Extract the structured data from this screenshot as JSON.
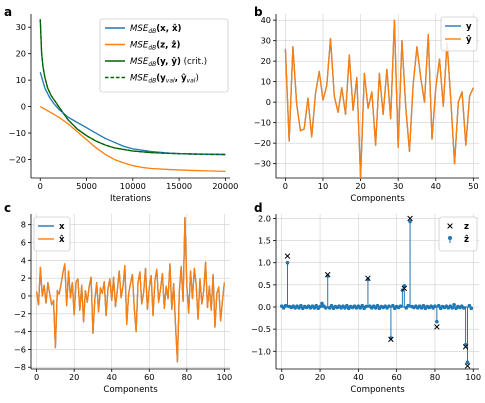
{
  "colors": {
    "blue": "#1f77b4",
    "orange": "#ff7f0e",
    "green": "#006400",
    "legend_border": "#cccccc"
  },
  "chart_data": [
    {
      "id": "a",
      "letter": "a",
      "type": "line",
      "xlabel": "Iterations",
      "ylabel": "",
      "xlim": [
        -1000,
        20500
      ],
      "ylim": [
        -27,
        35
      ],
      "xticks": [
        0,
        5000,
        10000,
        15000,
        20000
      ],
      "yticks": [
        -20,
        -10,
        0,
        10,
        20,
        30
      ],
      "grid": false,
      "legend_position": "top-right",
      "series": [
        {
          "name": "MSE_dB(x, x̂)",
          "legend_main": "MSE",
          "legend_sub": "dB",
          "legend_args": "(x, x̂)",
          "legend_suffix": "",
          "color_key": "blue",
          "style": "solid",
          "x": [
            0,
            500,
            1000,
            1500,
            2000,
            2500,
            3000,
            3500,
            4000,
            5000,
            6000,
            7000,
            8000,
            9000,
            10000,
            12000,
            14000,
            16000,
            18000,
            20000
          ],
          "y": [
            13,
            7,
            3.5,
            1,
            -1,
            -2.5,
            -4,
            -5,
            -6,
            -8,
            -10,
            -12,
            -13.5,
            -15,
            -16,
            -17,
            -17.6,
            -17.9,
            -18.1,
            -18.2
          ]
        },
        {
          "name": "MSE_dB(z, ẑ)",
          "legend_main": "MSE",
          "legend_sub": "dB",
          "legend_args": "(z, ẑ)",
          "legend_suffix": "",
          "color_key": "orange",
          "style": "solid",
          "x": [
            0,
            500,
            1000,
            2000,
            3000,
            4000,
            5000,
            6000,
            7000,
            8000,
            9000,
            10000,
            11000,
            12000,
            14000,
            16000,
            18000,
            20000
          ],
          "y": [
            0,
            -1,
            -2,
            -4,
            -6.5,
            -9.5,
            -12.5,
            -15.5,
            -18,
            -20,
            -21.3,
            -22.3,
            -23,
            -23.4,
            -23.8,
            -24.1,
            -24.3,
            -24.5
          ]
        },
        {
          "name": "MSE_dB(y, ŷ) (crit.)",
          "legend_main": "MSE",
          "legend_sub": "dB",
          "legend_args": "(y, ŷ)",
          "legend_suffix": " (crit.)",
          "color_key": "green",
          "style": "solid",
          "x": [
            0,
            150,
            300,
            500,
            800,
            1200,
            1600,
            2000,
            2500,
            3000,
            4000,
            5000,
            6000,
            7000,
            8000,
            10000,
            12000,
            14000,
            16000,
            18000,
            20000
          ],
          "y": [
            33,
            20,
            15,
            11,
            7,
            4,
            2,
            0,
            -2.5,
            -5,
            -8.5,
            -11,
            -13,
            -14.5,
            -15.6,
            -16.8,
            -17.4,
            -17.7,
            -17.9,
            -18,
            -18.1
          ]
        },
        {
          "name": "MSE_dB(y_val, ŷ_val)",
          "legend_main": "MSE",
          "legend_sub": "dB",
          "legend_args": "(y",
          "legend_args_sub": "val",
          "legend_args2": ", ŷ",
          "legend_args2_sub": "val",
          "legend_suffix": ")",
          "color_key": "green",
          "style": "dashed",
          "x": [
            0,
            150,
            300,
            500,
            800,
            1200,
            1600,
            2000,
            2500,
            3000,
            4000,
            5000,
            6000,
            7000,
            8000,
            10000,
            12000,
            14000,
            16000,
            18000,
            20000
          ],
          "y": [
            33,
            20,
            15,
            11,
            7,
            4,
            2,
            0,
            -2.5,
            -5,
            -8.5,
            -11,
            -13,
            -14.5,
            -15.6,
            -16.8,
            -17.4,
            -17.7,
            -17.9,
            -18,
            -18.1
          ]
        }
      ]
    },
    {
      "id": "b",
      "letter": "b",
      "type": "line",
      "xlabel": "Components",
      "ylabel": "",
      "xlim": [
        -2.5,
        51.5
      ],
      "ylim": [
        -37,
        43
      ],
      "xticks": [
        0,
        10,
        20,
        30,
        40,
        50
      ],
      "yticks": [
        -30,
        -20,
        -10,
        0,
        10,
        20,
        30,
        40
      ],
      "grid": true,
      "legend_position": "top-right",
      "series": [
        {
          "name": "y",
          "label": "y",
          "color_key": "blue",
          "style": "solid",
          "y": [
            26,
            -19,
            27,
            -1,
            -14,
            -13,
            2,
            -17,
            4,
            15,
            1,
            8,
            31,
            3,
            -5,
            7,
            -6,
            23,
            -4,
            12,
            -37,
            14,
            -3,
            5,
            -21,
            14,
            -6,
            16,
            -8,
            40,
            -22,
            30,
            -2,
            -24,
            9,
            27,
            12,
            0,
            33,
            -18,
            7,
            21,
            -2,
            29,
            1,
            -30,
            0,
            5,
            -21,
            3,
            7
          ]
        },
        {
          "name": "ŷ",
          "label": "ŷ",
          "color_key": "orange",
          "style": "solid",
          "y": [
            26,
            -19,
            27,
            -1,
            -14,
            -13,
            2,
            -17,
            4,
            15,
            1,
            8,
            31,
            3,
            -5,
            7,
            -6,
            23,
            -4,
            12,
            -37,
            14,
            -3,
            5,
            -21,
            14,
            -6,
            16,
            -8,
            40,
            -22,
            30,
            -2,
            -24,
            9,
            27,
            12,
            0,
            33,
            -18,
            7,
            21,
            -2,
            29,
            1,
            -30,
            0,
            5,
            -21,
            3,
            7
          ]
        }
      ]
    },
    {
      "id": "c",
      "letter": "c",
      "type": "line",
      "xlabel": "Components",
      "ylabel": "",
      "xlim": [
        -3,
        103
      ],
      "ylim": [
        -8.2,
        9.2
      ],
      "xticks": [
        0,
        20,
        40,
        60,
        80,
        100
      ],
      "yticks": [
        -8,
        -6,
        -4,
        -2,
        0,
        2,
        4,
        6,
        8
      ],
      "grid": true,
      "legend_position": "top-left",
      "series": [
        {
          "name": "x",
          "label": "x",
          "color_key": "blue",
          "style": "solid",
          "y": [
            0.5,
            -1,
            3.2,
            0,
            1.2,
            -0.8,
            1.5,
            0.2,
            -1,
            -0.5,
            -5.8,
            0.6,
            0.2,
            1.3,
            2.6,
            3.6,
            -1.1,
            2.8,
            -0.2,
            1.5,
            -2.1,
            1.6,
            1.9,
            -1.6,
            1.2,
            -2.9,
            0.6,
            -0.7,
            1.1,
            2.1,
            -4.2,
            -0.4,
            1.5,
            -1.8,
            0.9,
            0.3,
            1.6,
            -2.2,
            0.8,
            1.9,
            -0.5,
            2.1,
            -1.2,
            0.7,
            2.8,
            -0.2,
            1.1,
            3.4,
            -3.2,
            0.2,
            1.4,
            2.4,
            -1.3,
            -4,
            1.5,
            2.7,
            -0.9,
            0.4,
            3.1,
            -1.5,
            0.9,
            2.3,
            -2.2,
            1.7,
            3,
            -0.7,
            0.8,
            2.5,
            -1.4,
            1.1,
            -0.3,
            3.6,
            -1.5,
            1.4,
            -3.4,
            -7.4,
            0.5,
            3.3,
            -0.6,
            8.8,
            1.1,
            -1.9,
            2.8,
            -0.3,
            3.1,
            1.2,
            -2.6,
            1.9,
            -0.9,
            0.6,
            3.8,
            -1.3,
            1.1,
            -1.6,
            2.4,
            -3.5,
            0.3,
            1,
            -2.8,
            -0.5,
            1.5
          ]
        },
        {
          "name": "x̂",
          "label": "x̂",
          "color_key": "orange",
          "style": "solid",
          "y": [
            0.5,
            -1,
            3.2,
            0,
            1.2,
            -0.8,
            1.5,
            0.2,
            -1,
            -0.5,
            -5.8,
            0.6,
            0.2,
            1.3,
            2.6,
            3.6,
            -1.1,
            2.8,
            -0.2,
            1.5,
            -2.1,
            1.6,
            1.9,
            -1.6,
            1.2,
            -2.9,
            0.6,
            -0.7,
            1.1,
            2.1,
            -4.2,
            -0.4,
            1.5,
            -1.8,
            0.9,
            0.3,
            1.6,
            -2.2,
            0.8,
            1.9,
            -0.5,
            2.1,
            -1.2,
            0.7,
            2.8,
            -0.2,
            1.1,
            3.4,
            -3.2,
            0.2,
            1.4,
            2.4,
            -1.3,
            -4,
            1.5,
            2.7,
            -0.9,
            0.4,
            3.1,
            -1.5,
            0.9,
            2.3,
            -2.2,
            1.7,
            3,
            -0.7,
            0.8,
            2.5,
            -1.4,
            1.1,
            -0.3,
            3.6,
            -1.5,
            1.4,
            -3.4,
            -7.4,
            0.5,
            3.3,
            -0.6,
            8.8,
            1.1,
            -1.9,
            2.8,
            -0.3,
            3.1,
            1.2,
            -2.6,
            1.9,
            -0.9,
            0.6,
            3.8,
            -1.3,
            1.1,
            -1.6,
            2.4,
            -3.5,
            0.3,
            1,
            -2.8,
            -0.5,
            1.5
          ]
        }
      ]
    },
    {
      "id": "d",
      "letter": "d",
      "type": "stem",
      "xlabel": "Components",
      "ylabel": "",
      "xlim": [
        -3,
        103
      ],
      "ylim": [
        -1.4,
        2.1
      ],
      "xticks": [
        0,
        20,
        40,
        60,
        80,
        100
      ],
      "yticks": [
        -1.0,
        -0.5,
        0.0,
        0.5,
        1.0,
        1.5,
        2.0
      ],
      "ytick_labels": [
        "−1.0",
        "−0.5",
        "0.0",
        "0.5",
        "1.0",
        "1.5",
        "2.0"
      ],
      "grid": true,
      "legend_position": "top-right",
      "series": [
        {
          "name": "z",
          "label": "z",
          "marker": "x",
          "color_key": "black",
          "points": [
            [
              3,
              1.15
            ],
            [
              24,
              0.73
            ],
            [
              45,
              0.65
            ],
            [
              57,
              -0.73
            ],
            [
              64,
              0.42
            ],
            [
              67,
              2.0
            ],
            [
              81,
              -0.45
            ],
            [
              96,
              -0.9
            ],
            [
              97,
              -1.33
            ]
          ]
        },
        {
          "name": "ẑ",
          "label": "ẑ",
          "marker": "o",
          "color_key": "blue",
          "points": [
            [
              3,
              1.0
            ],
            [
              21,
              0.08
            ],
            [
              24,
              0.7
            ],
            [
              45,
              0.62
            ],
            [
              57,
              -0.7
            ],
            [
              63,
              0.38
            ],
            [
              64,
              0.48
            ],
            [
              67,
              1.93
            ],
            [
              81,
              -0.33
            ],
            [
              90,
              0.05
            ],
            [
              96,
              -0.85
            ],
            [
              97,
              -1.25
            ]
          ],
          "baseline_noise": [
            0.02,
            -0.02,
            0.03,
            -0.03,
            0.01,
            -0.01,
            0.02,
            -0.02
          ]
        }
      ]
    }
  ]
}
